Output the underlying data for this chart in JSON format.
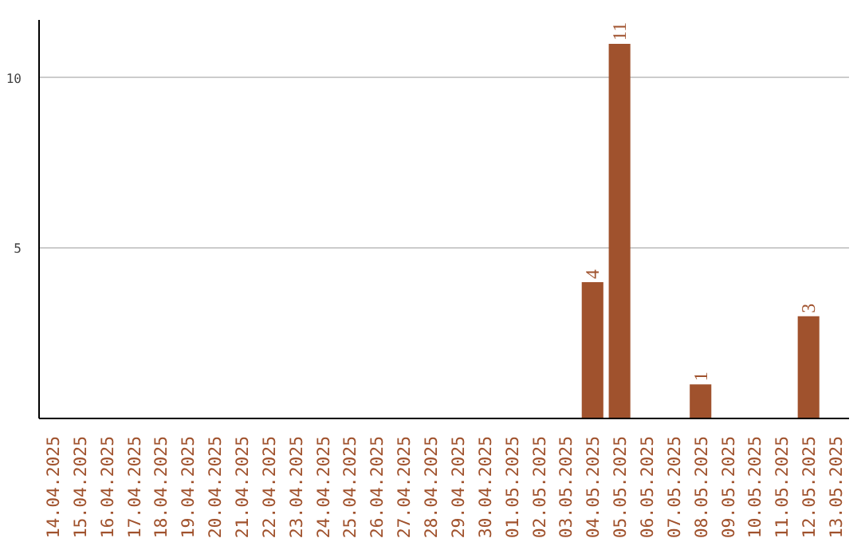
{
  "chart_data": {
    "type": "bar",
    "categories": [
      "14.04.2025",
      "15.04.2025",
      "16.04.2025",
      "17.04.2025",
      "18.04.2025",
      "19.04.2025",
      "20.04.2025",
      "21.04.2025",
      "22.04.2025",
      "23.04.2025",
      "24.04.2025",
      "25.04.2025",
      "26.04.2025",
      "27.04.2025",
      "28.04.2025",
      "29.04.2025",
      "30.04.2025",
      "01.05.2025",
      "02.05.2025",
      "03.05.2025",
      "04.05.2025",
      "05.05.2025",
      "06.05.2025",
      "07.05.2025",
      "08.05.2025",
      "09.05.2025",
      "10.05.2025",
      "11.05.2025",
      "12.05.2025",
      "13.05.2025"
    ],
    "values": [
      0,
      0,
      0,
      0,
      0,
      0,
      0,
      0,
      0,
      0,
      0,
      0,
      0,
      0,
      0,
      0,
      0,
      0,
      0,
      0,
      4,
      11,
      0,
      0,
      1,
      0,
      0,
      0,
      3,
      0
    ],
    "color": "#a0522d",
    "value_labels": [
      null,
      null,
      null,
      null,
      null,
      null,
      null,
      null,
      null,
      null,
      null,
      null,
      null,
      null,
      null,
      null,
      null,
      null,
      null,
      null,
      "4",
      "11",
      null,
      null,
      "1",
      null,
      null,
      null,
      "3",
      null
    ],
    "ylim": [
      0,
      11.7
    ],
    "yticks": [
      5,
      10
    ],
    "grid": "y"
  }
}
